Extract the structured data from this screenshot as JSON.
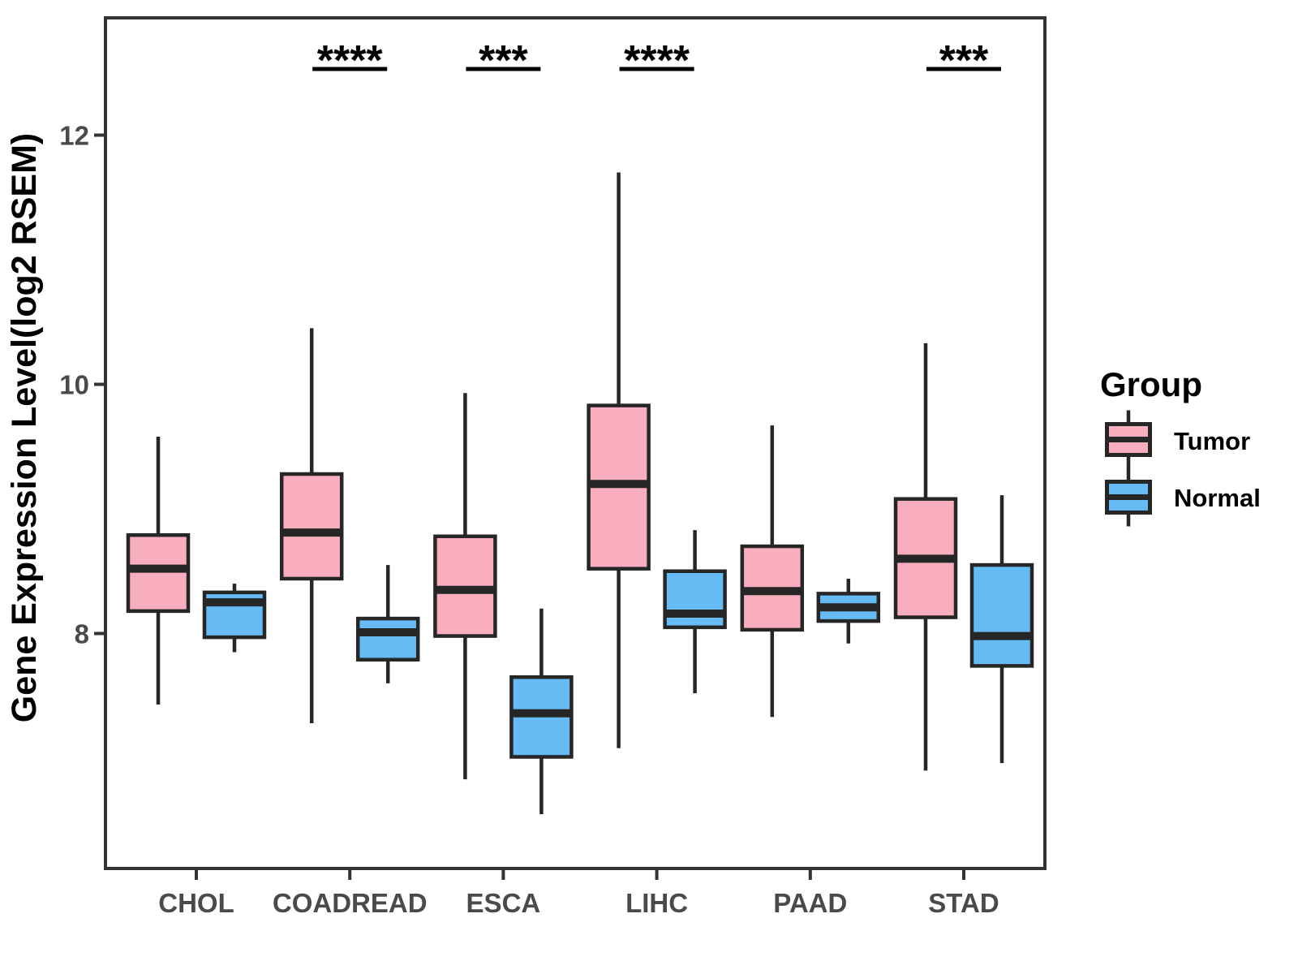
{
  "chart_data": {
    "type": "boxplot",
    "title": "",
    "xlabel": "",
    "ylabel": "Gene Expression Level(log2 RSEM)",
    "categories": [
      "CHOL",
      "COADREAD",
      "ESCA",
      "LIHC",
      "PAAD",
      "STAD"
    ],
    "y_ticks": [
      8,
      10,
      12
    ],
    "ylim": [
      6.1,
      12.95
    ],
    "grid": false,
    "legend": {
      "title": "Group",
      "position": "right",
      "entries": [
        {
          "label": "Tumor",
          "color": "#F8AEBE"
        },
        {
          "label": "Normal",
          "color": "#66BBF4"
        }
      ]
    },
    "significance": [
      {
        "category": "COADREAD",
        "label": "****"
      },
      {
        "category": "ESCA",
        "label": "***"
      },
      {
        "category": "LIHC",
        "label": "****"
      },
      {
        "category": "STAD",
        "label": "***"
      }
    ],
    "series": [
      {
        "name": "Tumor",
        "color": "#F8AEBE",
        "boxes": [
          {
            "category": "CHOL",
            "low": 7.43,
            "q1": 8.18,
            "median": 8.52,
            "q3": 8.79,
            "high": 9.58
          },
          {
            "category": "COADREAD",
            "low": 7.28,
            "q1": 8.44,
            "median": 8.81,
            "q3": 9.28,
            "high": 10.45
          },
          {
            "category": "ESCA",
            "low": 6.83,
            "q1": 7.98,
            "median": 8.35,
            "q3": 8.78,
            "high": 9.93
          },
          {
            "category": "LIHC",
            "low": 7.08,
            "q1": 8.52,
            "median": 9.2,
            "q3": 9.83,
            "high": 11.7
          },
          {
            "category": "PAAD",
            "low": 7.33,
            "q1": 8.03,
            "median": 8.34,
            "q3": 8.7,
            "high": 9.67
          },
          {
            "category": "STAD",
            "low": 6.9,
            "q1": 8.13,
            "median": 8.6,
            "q3": 9.08,
            "high": 10.33
          }
        ]
      },
      {
        "name": "Normal",
        "color": "#66BBF4",
        "boxes": [
          {
            "category": "CHOL",
            "low": 7.85,
            "q1": 7.97,
            "median": 8.25,
            "q3": 8.33,
            "high": 8.4
          },
          {
            "category": "COADREAD",
            "low": 7.6,
            "q1": 7.79,
            "median": 8.01,
            "q3": 8.12,
            "high": 8.55
          },
          {
            "category": "ESCA",
            "low": 6.55,
            "q1": 7.01,
            "median": 7.36,
            "q3": 7.65,
            "high": 8.2
          },
          {
            "category": "LIHC",
            "low": 7.52,
            "q1": 8.05,
            "median": 8.16,
            "q3": 8.5,
            "high": 8.83
          },
          {
            "category": "PAAD",
            "low": 7.92,
            "q1": 8.1,
            "median": 8.21,
            "q3": 8.32,
            "high": 8.44
          },
          {
            "category": "STAD",
            "low": 6.96,
            "q1": 7.74,
            "median": 7.98,
            "q3": 8.55,
            "high": 9.11
          }
        ]
      }
    ],
    "colors": {
      "tumor": "#F8AEBE",
      "normal": "#66BBF4",
      "box_stroke": "#262626",
      "axis_line": "#333333",
      "axis_text": "#4a4a4a",
      "significance": "#000000",
      "background": "#FFFFFF"
    }
  }
}
